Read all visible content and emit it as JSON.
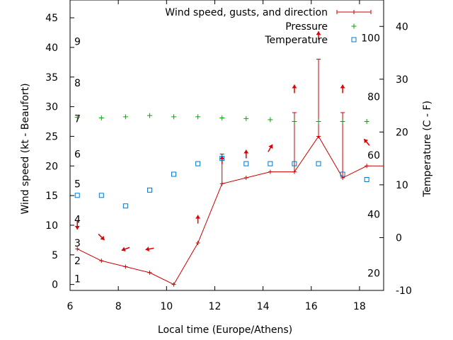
{
  "chart_data": {
    "type": "line",
    "xlabel": "Local time (Europe/Athens)",
    "ylabel": "Wind speed (kt - Beaufort)",
    "y2label": "Temperature (C - F)",
    "xlim": [
      6,
      19
    ],
    "ylim": [
      -1,
      48
    ],
    "y2lim": [
      -10,
      45
    ],
    "x_ticks": [
      6,
      8,
      10,
      12,
      14,
      16,
      18
    ],
    "y_ticks": [
      0,
      5,
      10,
      15,
      20,
      25,
      30,
      35,
      40,
      45
    ],
    "y2_ticks": [
      -10,
      0,
      10,
      20,
      30,
      40
    ],
    "beaufort_labels": [
      {
        "label": "1",
        "kt": 1
      },
      {
        "label": "2",
        "kt": 4
      },
      {
        "label": "3",
        "kt": 7
      },
      {
        "label": "4",
        "kt": 11
      },
      {
        "label": "5",
        "kt": 17
      },
      {
        "label": "6",
        "kt": 22
      },
      {
        "label": "7",
        "kt": 28
      },
      {
        "label": "8",
        "kt": 34
      },
      {
        "label": "9",
        "kt": 41
      }
    ],
    "fahrenheit_labels": [
      {
        "label": "20",
        "celsius": -6.7
      },
      {
        "label": "40",
        "celsius": 4.4
      },
      {
        "label": "60",
        "celsius": 15.6
      },
      {
        "label": "80",
        "celsius": 26.7
      },
      {
        "label": "100",
        "celsius": 37.8
      }
    ],
    "x": [
      6.3,
      7.3,
      8.3,
      9.3,
      10.3,
      11.3,
      12.3,
      13.3,
      14.3,
      15.3,
      16.3,
      17.3,
      18.3
    ],
    "series": [
      {
        "name": "Wind speed, gusts, and direction",
        "color": "#cc0000",
        "axis": "left",
        "values": [
          6,
          4,
          3,
          2,
          0,
          7,
          17,
          18,
          19,
          19,
          25,
          18,
          20
        ],
        "gusts": [
          null,
          null,
          null,
          null,
          null,
          null,
          22,
          null,
          null,
          29,
          38,
          29,
          null
        ],
        "direction_deg": [
          180,
          135,
          250,
          260,
          0,
          0,
          0,
          0,
          30,
          0,
          0,
          0,
          320
        ],
        "direction_arrow_kt": [
          10,
          8,
          6,
          6,
          null,
          11,
          21,
          22,
          23,
          33,
          42,
          33,
          24
        ]
      },
      {
        "name": "Pressure",
        "color": "#00aa00",
        "axis": "left",
        "values": [
          28.2,
          28.1,
          28.3,
          28.5,
          28.3,
          28.3,
          28.1,
          28.0,
          27.8,
          27.5,
          27.5,
          27.5,
          27.5
        ]
      },
      {
        "name": "Temperature",
        "color": "#0077cc",
        "axis": "right",
        "values": [
          8,
          8,
          6,
          9,
          12,
          14,
          15,
          14,
          14,
          14,
          14,
          12,
          11
        ]
      }
    ],
    "grid": false,
    "legend_position": "top-right"
  }
}
